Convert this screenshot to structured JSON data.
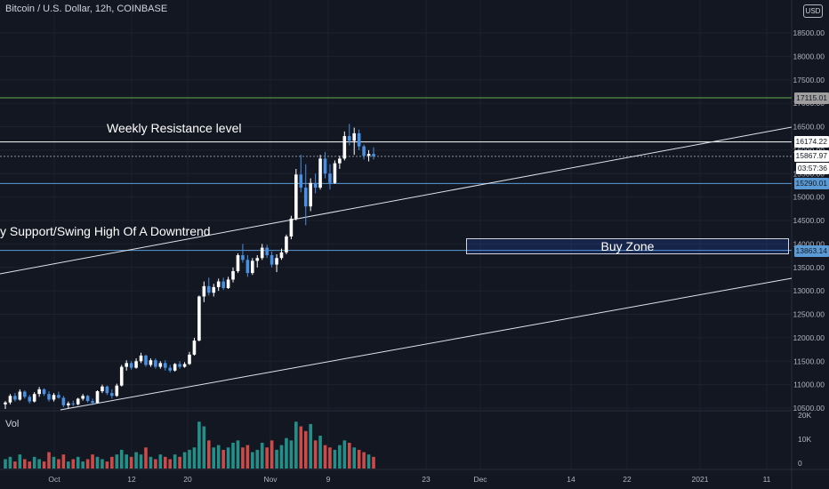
{
  "header": {
    "symbol_title": "Bitcoin / U.S. Dollar, 12h, COINBASE"
  },
  "currency_button": "USD",
  "volume_pane": {
    "label": "Vol",
    "axis_labels": [
      "20K",
      "10K",
      "0"
    ]
  },
  "annotations": {
    "weekly_resistance": "Weekly Resistance level",
    "support": "y Support/Swing High Of A Downtrend",
    "buy_zone": "Buy Zone"
  },
  "price_tags": {
    "green_level": "17115.01",
    "resistance": "16174.22",
    "last_price": "15867.97",
    "countdown": "03:57:36",
    "level_15290": "15290.01",
    "level_13863": "13863.14"
  },
  "colors": {
    "background": "#131722",
    "up_candle": "#ffffff",
    "down_candle": "#4a90e2",
    "volume_up": "#26a69a",
    "volume_down": "#ef5350",
    "green_level": "#6aa84f",
    "blue_level": "#5b9bd5"
  },
  "chart_data": {
    "type": "candlestick",
    "title": "Bitcoin / U.S. Dollar, 12h, COINBASE",
    "y_ticks": [
      "18500.00",
      "18000.00",
      "17500.00",
      "17000.00",
      "16500.00",
      "16000.00",
      "15500.00",
      "15000.00",
      "14500.00",
      "14000.00",
      "13500.00",
      "13000.00",
      "12500.00",
      "12000.00",
      "11500.00",
      "11000.00",
      "10500.00"
    ],
    "x_ticks": [
      "Oct",
      "12",
      "20",
      "Nov",
      "9",
      "23",
      "Dec",
      "14",
      "22",
      "2021",
      "11"
    ],
    "ylim": [
      10500,
      18900
    ],
    "horizontal_levels": [
      17115.01,
      16174.22,
      15867.97,
      15290.01,
      13863.14
    ],
    "candles": [
      [
        10580,
        10650,
        10480,
        10620
      ],
      [
        10620,
        10800,
        10580,
        10760
      ],
      [
        10760,
        10820,
        10640,
        10680
      ],
      [
        10680,
        10900,
        10660,
        10850
      ],
      [
        10850,
        10880,
        10700,
        10740
      ],
      [
        10740,
        10780,
        10600,
        10640
      ],
      [
        10640,
        10840,
        10620,
        10800
      ],
      [
        10800,
        10950,
        10740,
        10900
      ],
      [
        10900,
        10920,
        10760,
        10800
      ],
      [
        10800,
        10860,
        10640,
        10680
      ],
      [
        10680,
        10820,
        10640,
        10780
      ],
      [
        10780,
        10850,
        10700,
        10720
      ],
      [
        10720,
        10760,
        10520,
        10560
      ],
      [
        10560,
        10640,
        10500,
        10600
      ],
      [
        10600,
        10660,
        10540,
        10580
      ],
      [
        10580,
        10720,
        10560,
        10700
      ],
      [
        10700,
        10800,
        10660,
        10760
      ],
      [
        10760,
        10780,
        10620,
        10650
      ],
      [
        10650,
        10700,
        10560,
        10610
      ],
      [
        10610,
        10880,
        10600,
        10860
      ],
      [
        10860,
        11000,
        10820,
        10960
      ],
      [
        10960,
        10980,
        10780,
        10820
      ],
      [
        10820,
        10900,
        10700,
        10760
      ],
      [
        10760,
        11020,
        10740,
        10980
      ],
      [
        10980,
        11420,
        10960,
        11380
      ],
      [
        11380,
        11520,
        11300,
        11460
      ],
      [
        11460,
        11500,
        11320,
        11360
      ],
      [
        11360,
        11560,
        11340,
        11500
      ],
      [
        11500,
        11680,
        11460,
        11620
      ],
      [
        11620,
        11640,
        11380,
        11420
      ],
      [
        11420,
        11560,
        11380,
        11520
      ],
      [
        11520,
        11560,
        11340,
        11380
      ],
      [
        11380,
        11500,
        11340,
        11460
      ],
      [
        11460,
        11520,
        11300,
        11360
      ],
      [
        11360,
        11420,
        11260,
        11300
      ],
      [
        11300,
        11460,
        11280,
        11440
      ],
      [
        11440,
        11500,
        11340,
        11380
      ],
      [
        11380,
        11480,
        11360,
        11440
      ],
      [
        11440,
        11700,
        11420,
        11640
      ],
      [
        11640,
        12000,
        11620,
        11940
      ],
      [
        11940,
        12900,
        11920,
        12880
      ],
      [
        12880,
        13200,
        12760,
        13100
      ],
      [
        13100,
        13280,
        12900,
        12960
      ],
      [
        12960,
        13150,
        12880,
        13080
      ],
      [
        13080,
        13260,
        13000,
        13200
      ],
      [
        13200,
        13280,
        13020,
        13060
      ],
      [
        13060,
        13300,
        13040,
        13240
      ],
      [
        13240,
        13500,
        13180,
        13420
      ],
      [
        13420,
        13800,
        13380,
        13760
      ],
      [
        13760,
        14000,
        13600,
        13660
      ],
      [
        13660,
        13760,
        13300,
        13380
      ],
      [
        13380,
        13700,
        13340,
        13640
      ],
      [
        13640,
        13760,
        13500,
        13700
      ],
      [
        13700,
        14000,
        13660,
        13920
      ],
      [
        13920,
        13980,
        13700,
        13760
      ],
      [
        13760,
        13840,
        13500,
        13560
      ],
      [
        13560,
        13780,
        13400,
        13700
      ],
      [
        13700,
        13900,
        13660,
        13820
      ],
      [
        13820,
        14200,
        13780,
        14160
      ],
      [
        14160,
        14600,
        14100,
        14540
      ],
      [
        14540,
        15600,
        14500,
        15480
      ],
      [
        15480,
        15900,
        15100,
        15200
      ],
      [
        15200,
        15700,
        14400,
        14800
      ],
      [
        14800,
        15400,
        14700,
        15300
      ],
      [
        15300,
        15500,
        15080,
        15200
      ],
      [
        15200,
        15900,
        15160,
        15820
      ],
      [
        15820,
        15960,
        15400,
        15500
      ],
      [
        15500,
        15700,
        15160,
        15300
      ],
      [
        15300,
        15780,
        15280,
        15720
      ],
      [
        15720,
        15880,
        15600,
        15820
      ],
      [
        15820,
        16400,
        15780,
        16300
      ],
      [
        16300,
        16560,
        16100,
        16200
      ],
      [
        16200,
        16480,
        15900,
        16360
      ],
      [
        16360,
        16440,
        16000,
        16080
      ],
      [
        16080,
        16120,
        15800,
        15880
      ],
      [
        15880,
        16000,
        15760,
        15920
      ],
      [
        15920,
        16060,
        15800,
        15868
      ]
    ],
    "volume": [
      4,
      5,
      3,
      6,
      4,
      3,
      5,
      4,
      3,
      7,
      5,
      4,
      6,
      3,
      4,
      5,
      3,
      4,
      6,
      5,
      4,
      3,
      5,
      6,
      8,
      6,
      5,
      7,
      6,
      9,
      5,
      4,
      6,
      5,
      4,
      6,
      5,
      7,
      8,
      9,
      20,
      18,
      12,
      9,
      10,
      8,
      9,
      11,
      12,
      9,
      10,
      7,
      8,
      11,
      9,
      12,
      8,
      10,
      13,
      12,
      20,
      18,
      16,
      19,
      12,
      14,
      10,
      9,
      8,
      10,
      12,
      11,
      9,
      8,
      7,
      6,
      5
    ]
  }
}
